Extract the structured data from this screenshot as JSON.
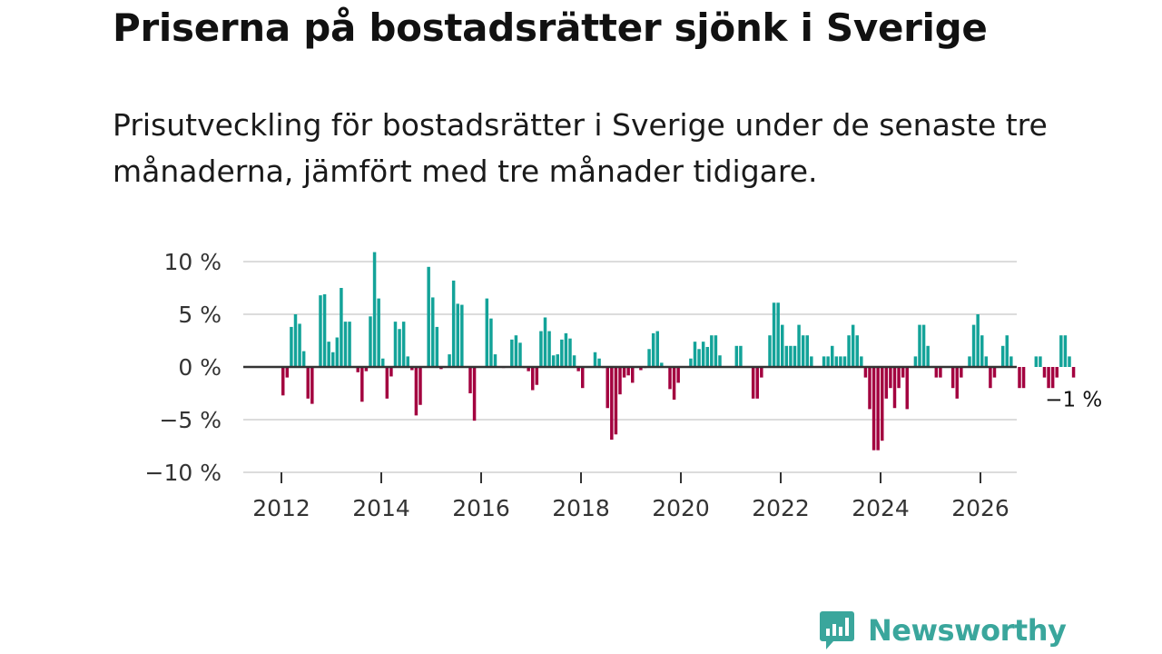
{
  "title": "Priserna på bostadsrätter sjönk i Sverige",
  "subtitle": "Prisutveckling för bostadsrätter i Sverige under de senaste tre månaderna, jämfört med tre månader tidigare.",
  "logo": {
    "text": "Newsworthy",
    "icon": "newsworthy-chart-icon",
    "color": "#3aa69c"
  },
  "colors": {
    "positive": "#13a399",
    "negative": "#a3003f",
    "grid": "#dcdcdc",
    "zero": "#333333"
  },
  "chart_data": {
    "type": "bar",
    "title": "Priserna på bostadsrätter sjönk i Sverige",
    "xlabel": "",
    "ylabel": "",
    "ylim": [
      -10,
      10
    ],
    "y_ticks": [
      10,
      5,
      0,
      -5,
      -10
    ],
    "y_tick_labels": [
      "10 %",
      "5 %",
      "0 %",
      "−5 %",
      "−10 %"
    ],
    "x_ticks": [
      2012,
      2014,
      2016,
      2018,
      2020,
      2022,
      2024,
      2026
    ],
    "x_tick_labels": [
      "2012",
      "2014",
      "2016",
      "2018",
      "2020",
      "2022",
      "2024",
      "2026"
    ],
    "x_start": 2012,
    "unit": "%",
    "grid": true,
    "legend": "none",
    "annotation": {
      "text": "−1 %",
      "value": -1
    },
    "values": [
      -2.7,
      -1.0,
      3.8,
      5.0,
      4.1,
      1.5,
      -3.0,
      -3.5,
      0.0,
      6.8,
      6.9,
      2.4,
      1.4,
      2.8,
      7.5,
      4.3,
      4.3,
      0.0,
      -0.5,
      -3.3,
      -0.4,
      4.8,
      10.9,
      6.5,
      0.8,
      -3.0,
      -0.9,
      4.3,
      3.6,
      4.3,
      1.0,
      -0.3,
      -4.6,
      -3.6,
      0.0,
      9.5,
      6.6,
      3.8,
      -0.2,
      0.0,
      1.2,
      8.2,
      6.0,
      5.9,
      0.0,
      -2.5,
      -5.1,
      0.0,
      0.0,
      6.5,
      4.6,
      1.2,
      0.0,
      -0.1,
      0.0,
      2.6,
      3.0,
      2.3,
      -0.1,
      -0.4,
      -2.2,
      -1.7,
      3.4,
      4.7,
      3.4,
      1.1,
      1.2,
      2.6,
      3.2,
      2.7,
      1.1,
      -0.4,
      -2.0,
      0.0,
      0.0,
      1.4,
      0.8,
      -0.1,
      -3.9,
      -6.9,
      -6.4,
      -2.6,
      -1.0,
      -0.8,
      -1.5,
      0.0,
      -0.3,
      -0.1,
      1.7,
      3.2,
      3.4,
      0.4,
      0.0,
      -2.1,
      -3.1,
      -1.5,
      0.0,
      0.0,
      0.8,
      2.4,
      1.7,
      2.4,
      1.9,
      3.0,
      3.0,
      1.1,
      0.0,
      0.0,
      0.0,
      2.0,
      2.0,
      0.0,
      0.0,
      -3.0,
      -3.0,
      -1.0,
      0.0,
      3.0,
      6.1,
      6.1,
      4.0,
      2.0,
      2.0,
      2.0,
      4.0,
      3.0,
      3.0,
      1.0,
      0.0,
      0.0,
      1.0,
      1.0,
      2.0,
      1.0,
      1.0,
      1.0,
      3.0,
      4.0,
      3.0,
      1.0,
      -1.0,
      -4.0,
      -7.9,
      -7.9,
      -7.0,
      -3.0,
      -2.0,
      -3.9,
      -2.0,
      -1.0,
      -4.0,
      0.0,
      1.0,
      4.0,
      4.0,
      2.0,
      0.0,
      -1.0,
      -1.0,
      0.0,
      0.0,
      -2.0,
      -3.0,
      -1.0,
      0.0,
      1.0,
      4.0,
      5.0,
      3.0,
      1.0,
      -2.0,
      -1.0,
      0.0,
      2.0,
      3.0,
      1.0,
      0.0,
      -2.0,
      -2.0,
      0.0,
      0.0,
      1.0,
      1.0,
      -1.0,
      -2.0,
      -2.0,
      -1.0,
      3.0,
      3.0,
      1.0,
      -1.0
    ]
  }
}
